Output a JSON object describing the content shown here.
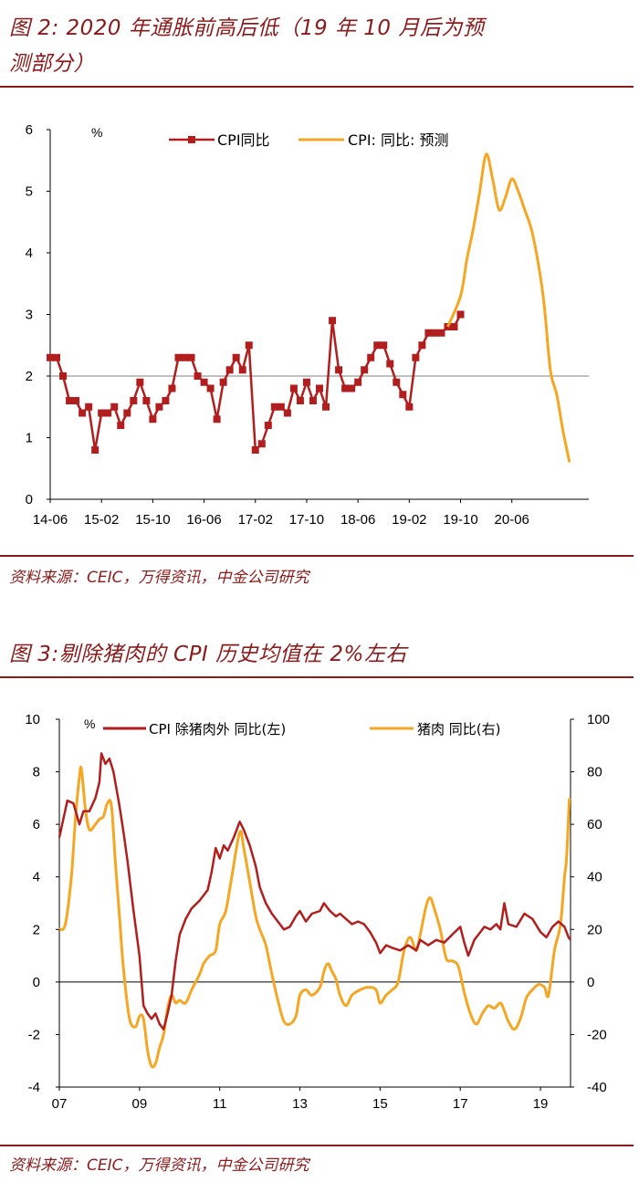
{
  "fig2": {
    "title_line1": "图 2: 2020 年通胀前高后低（19 年 10 月后为预",
    "title_line2": "测部分）",
    "source": "资料来源：CEIC，万得资讯，中金公司研究"
  },
  "fig3": {
    "title": "图 3:剔除猪肉的 CPI 历史均值在 2%左右",
    "source": "资料来源：CEIC，万得资讯，中金公司研究"
  },
  "chart_data": [
    {
      "type": "line",
      "unit_label": "%",
      "ylim": [
        0,
        6
      ],
      "y_ticks": [
        "0",
        "1",
        "2",
        "3",
        "4",
        "5",
        "6"
      ],
      "x_tick_labels": [
        "14-06",
        "15-02",
        "15-10",
        "16-06",
        "17-02",
        "17-10",
        "18-06",
        "19-02",
        "19-10",
        "20-06"
      ],
      "reference_line_y": 2,
      "legend": [
        "CPI同比",
        "CPI: 同比: 预测"
      ],
      "legend_placement": "top",
      "colors": {
        "actual": "#b21e1e",
        "forecast": "#f5a623",
        "reference": "#808080"
      },
      "series": [
        {
          "name": "CPI同比",
          "start": "2014-06",
          "values": [
            2.3,
            2.3,
            2.0,
            1.6,
            1.6,
            1.4,
            1.5,
            0.8,
            1.4,
            1.4,
            1.5,
            1.2,
            1.4,
            1.6,
            1.9,
            1.6,
            1.3,
            1.5,
            1.6,
            1.8,
            2.3,
            2.3,
            2.3,
            2.0,
            1.9,
            1.8,
            1.3,
            1.9,
            2.1,
            2.3,
            2.1,
            2.5,
            0.8,
            0.9,
            1.2,
            1.5,
            1.5,
            1.4,
            1.8,
            1.6,
            1.9,
            1.6,
            1.8,
            1.5,
            2.9,
            2.1,
            1.8,
            1.8,
            1.9,
            2.1,
            2.3,
            2.5,
            2.5,
            2.2,
            1.9,
            1.7,
            1.5,
            2.3,
            2.5,
            2.7,
            2.7,
            2.7,
            2.8,
            2.8,
            3.0
          ]
        },
        {
          "name": "CPI: 同比: 预测",
          "points": [
            [
              "2019-08",
              2.8
            ],
            [
              "2019-10",
              3.3
            ],
            [
              "2019-11",
              3.9
            ],
            [
              "2019-12",
              4.4
            ],
            [
              "2020-01",
              5.0
            ],
            [
              "2020-02",
              5.6
            ],
            [
              "2020-03",
              5.2
            ],
            [
              "2020-04",
              4.7
            ],
            [
              "2020-05",
              4.9
            ],
            [
              "2020-06",
              5.2
            ],
            [
              "2020-07",
              5.0
            ],
            [
              "2020-08",
              4.7
            ],
            [
              "2020-09",
              4.4
            ],
            [
              "2020-10",
              3.9
            ],
            [
              "2020-11",
              3.2
            ],
            [
              "2020-12",
              2.1
            ],
            [
              "2021-01",
              1.7
            ],
            [
              "2021-02",
              1.1
            ],
            [
              "2021-03",
              0.6
            ]
          ]
        }
      ]
    },
    {
      "type": "line",
      "unit_label": "%",
      "ylim_left": [
        -4,
        10
      ],
      "ylim_right": [
        -40,
        100
      ],
      "y_ticks_left": [
        "-4",
        "-2",
        "0",
        "2",
        "4",
        "6",
        "8",
        "10"
      ],
      "y_ticks_right": [
        "-40",
        "-20",
        "0",
        "20",
        "40",
        "60",
        "80",
        "100"
      ],
      "x_tick_labels": [
        "07",
        "09",
        "11",
        "13",
        "15",
        "17",
        "19"
      ],
      "legend": [
        "CPI 除猪肉外 同比(左)",
        "猪肉 同比(右)"
      ],
      "legend_placement": "top",
      "colors": {
        "core": "#b21e1e",
        "pork": "#f5a623"
      },
      "series": [
        {
          "name": "CPI 除猪肉外 同比(左)",
          "axis": "left",
          "points": [
            [
              2007.0,
              5.5
            ],
            [
              2007.1,
              6.2
            ],
            [
              2007.2,
              6.9
            ],
            [
              2007.35,
              6.8
            ],
            [
              2007.5,
              6.0
            ],
            [
              2007.6,
              6.5
            ],
            [
              2007.75,
              6.5
            ],
            [
              2007.9,
              7.0
            ],
            [
              2008.0,
              7.6
            ],
            [
              2008.05,
              8.7
            ],
            [
              2008.15,
              8.3
            ],
            [
              2008.25,
              8.5
            ],
            [
              2008.35,
              8.0
            ],
            [
              2008.5,
              6.7
            ],
            [
              2008.6,
              5.7
            ],
            [
              2008.7,
              4.6
            ],
            [
              2008.85,
              2.7
            ],
            [
              2009.0,
              1.0
            ],
            [
              2009.1,
              -0.9
            ],
            [
              2009.2,
              -1.2
            ],
            [
              2009.3,
              -1.4
            ],
            [
              2009.4,
              -1.2
            ],
            [
              2009.5,
              -1.6
            ],
            [
              2009.6,
              -1.8
            ],
            [
              2009.7,
              -1.2
            ],
            [
              2009.8,
              -0.5
            ],
            [
              2009.9,
              0.8
            ],
            [
              2010.0,
              1.8
            ],
            [
              2010.15,
              2.4
            ],
            [
              2010.3,
              2.8
            ],
            [
              2010.5,
              3.1
            ],
            [
              2010.7,
              3.5
            ],
            [
              2010.8,
              4.2
            ],
            [
              2010.9,
              5.1
            ],
            [
              2011.0,
              4.7
            ],
            [
              2011.1,
              5.2
            ],
            [
              2011.2,
              5.0
            ],
            [
              2011.35,
              5.5
            ],
            [
              2011.5,
              6.1
            ],
            [
              2011.6,
              5.8
            ],
            [
              2011.75,
              5.2
            ],
            [
              2011.9,
              4.4
            ],
            [
              2012.0,
              3.6
            ],
            [
              2012.15,
              3.0
            ],
            [
              2012.3,
              2.6
            ],
            [
              2012.45,
              2.3
            ],
            [
              2012.6,
              2.0
            ],
            [
              2012.75,
              2.1
            ],
            [
              2012.9,
              2.5
            ],
            [
              2013.0,
              2.7
            ],
            [
              2013.15,
              2.3
            ],
            [
              2013.3,
              2.6
            ],
            [
              2013.5,
              2.7
            ],
            [
              2013.6,
              3.0
            ],
            [
              2013.75,
              2.7
            ],
            [
              2013.9,
              2.5
            ],
            [
              2014.0,
              2.6
            ],
            [
              2014.15,
              2.4
            ],
            [
              2014.3,
              2.2
            ],
            [
              2014.45,
              2.3
            ],
            [
              2014.6,
              2.2
            ],
            [
              2014.75,
              1.9
            ],
            [
              2014.9,
              1.5
            ],
            [
              2015.0,
              1.1
            ],
            [
              2015.15,
              1.4
            ],
            [
              2015.3,
              1.3
            ],
            [
              2015.5,
              1.2
            ],
            [
              2015.7,
              1.4
            ],
            [
              2015.9,
              1.2
            ],
            [
              2016.0,
              1.6
            ],
            [
              2016.2,
              1.4
            ],
            [
              2016.4,
              1.6
            ],
            [
              2016.6,
              1.5
            ],
            [
              2016.8,
              1.8
            ],
            [
              2017.0,
              2.1
            ],
            [
              2017.1,
              1.5
            ],
            [
              2017.2,
              1.0
            ],
            [
              2017.35,
              1.6
            ],
            [
              2017.5,
              1.9
            ],
            [
              2017.6,
              2.1
            ],
            [
              2017.75,
              2.0
            ],
            [
              2017.9,
              2.2
            ],
            [
              2018.0,
              2.0
            ],
            [
              2018.1,
              3.0
            ],
            [
              2018.2,
              2.2
            ],
            [
              2018.4,
              2.1
            ],
            [
              2018.6,
              2.6
            ],
            [
              2018.8,
              2.4
            ],
            [
              2019.0,
              1.9
            ],
            [
              2019.15,
              1.7
            ],
            [
              2019.3,
              2.1
            ],
            [
              2019.45,
              2.3
            ],
            [
              2019.6,
              2.1
            ],
            [
              2019.7,
              1.7
            ],
            [
              2019.75,
              1.6
            ]
          ]
        },
        {
          "name": "猪肉 同比(右)",
          "axis": "right",
          "points": [
            [
              2007.0,
              20
            ],
            [
              2007.15,
              22
            ],
            [
              2007.3,
              40
            ],
            [
              2007.4,
              62
            ],
            [
              2007.5,
              78
            ],
            [
              2007.55,
              81
            ],
            [
              2007.65,
              66
            ],
            [
              2007.75,
              58
            ],
            [
              2007.9,
              60
            ],
            [
              2008.0,
              62
            ],
            [
              2008.1,
              63
            ],
            [
              2008.2,
              68
            ],
            [
              2008.3,
              67
            ],
            [
              2008.4,
              45
            ],
            [
              2008.5,
              25
            ],
            [
              2008.6,
              5
            ],
            [
              2008.75,
              -14
            ],
            [
              2008.9,
              -17
            ],
            [
              2009.0,
              -13
            ],
            [
              2009.1,
              -14
            ],
            [
              2009.2,
              -26
            ],
            [
              2009.3,
              -32
            ],
            [
              2009.4,
              -31
            ],
            [
              2009.5,
              -25
            ],
            [
              2009.6,
              -20
            ],
            [
              2009.7,
              -10
            ],
            [
              2009.8,
              -5
            ],
            [
              2009.9,
              -8
            ],
            [
              2010.0,
              -7
            ],
            [
              2010.15,
              -8
            ],
            [
              2010.3,
              -3
            ],
            [
              2010.5,
              3
            ],
            [
              2010.6,
              7
            ],
            [
              2010.75,
              10
            ],
            [
              2010.9,
              12
            ],
            [
              2011.0,
              22
            ],
            [
              2011.15,
              27
            ],
            [
              2011.3,
              40
            ],
            [
              2011.5,
              57
            ],
            [
              2011.6,
              51
            ],
            [
              2011.75,
              38
            ],
            [
              2011.9,
              25
            ],
            [
              2012.0,
              20
            ],
            [
              2012.15,
              14
            ],
            [
              2012.3,
              3
            ],
            [
              2012.45,
              -7
            ],
            [
              2012.6,
              -15
            ],
            [
              2012.75,
              -16
            ],
            [
              2012.9,
              -13
            ],
            [
              2013.0,
              -5
            ],
            [
              2013.15,
              -3
            ],
            [
              2013.3,
              -5
            ],
            [
              2013.5,
              -2
            ],
            [
              2013.6,
              4
            ],
            [
              2013.7,
              7
            ],
            [
              2013.8,
              4
            ],
            [
              2013.9,
              1
            ],
            [
              2014.0,
              -5
            ],
            [
              2014.15,
              -9
            ],
            [
              2014.3,
              -5
            ],
            [
              2014.5,
              -3
            ],
            [
              2014.7,
              -2
            ],
            [
              2014.9,
              -3
            ],
            [
              2015.0,
              -8
            ],
            [
              2015.15,
              -5
            ],
            [
              2015.3,
              -3
            ],
            [
              2015.45,
              0
            ],
            [
              2015.6,
              12
            ],
            [
              2015.75,
              17
            ],
            [
              2015.9,
              12
            ],
            [
              2016.0,
              18
            ],
            [
              2016.15,
              29
            ],
            [
              2016.25,
              32
            ],
            [
              2016.35,
              28
            ],
            [
              2016.5,
              20
            ],
            [
              2016.65,
              9
            ],
            [
              2016.8,
              8
            ],
            [
              2016.95,
              6
            ],
            [
              2017.1,
              -4
            ],
            [
              2017.25,
              -12
            ],
            [
              2017.4,
              -16
            ],
            [
              2017.55,
              -12
            ],
            [
              2017.7,
              -9
            ],
            [
              2017.85,
              -10
            ],
            [
              2018.0,
              -8
            ],
            [
              2018.1,
              -11
            ],
            [
              2018.2,
              -15
            ],
            [
              2018.35,
              -18
            ],
            [
              2018.5,
              -14
            ],
            [
              2018.65,
              -6
            ],
            [
              2018.8,
              -3
            ],
            [
              2018.95,
              -1
            ],
            [
              2019.1,
              -2
            ],
            [
              2019.2,
              -5
            ],
            [
              2019.35,
              12
            ],
            [
              2019.5,
              22
            ],
            [
              2019.6,
              40
            ],
            [
              2019.65,
              47
            ],
            [
              2019.72,
              70
            ]
          ]
        }
      ]
    }
  ]
}
